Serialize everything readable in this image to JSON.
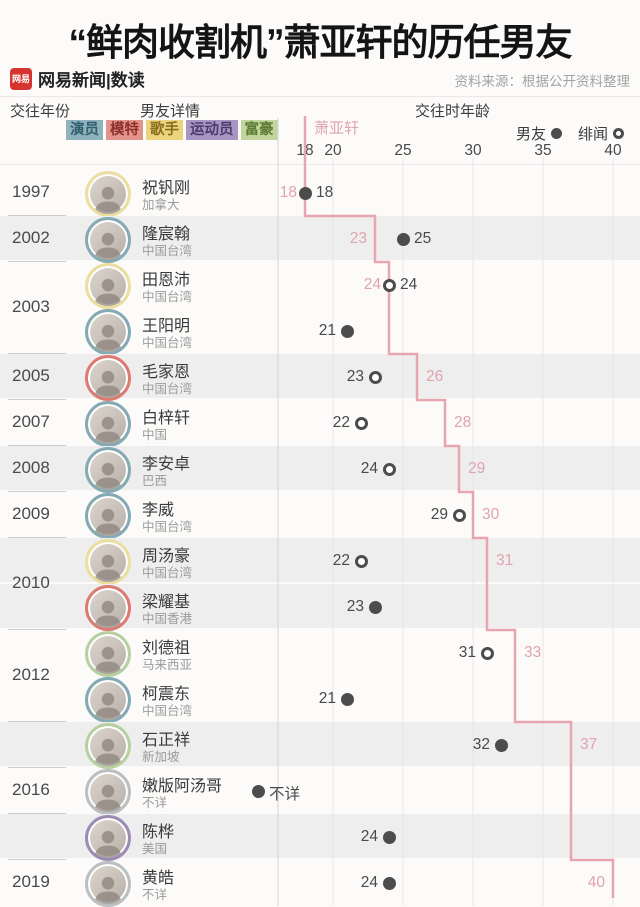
{
  "header": {
    "title": "“鲜肉收割机”萧亚轩的历任男友",
    "brand": {
      "logo_text": "网易",
      "name": "网易新闻|数读"
    },
    "source": "资料来源：根据公开资料整理"
  },
  "table": {
    "col_year": "交往年份",
    "col_detail": "男友详情",
    "col_age": "交往时年龄"
  },
  "legend": {
    "chips": [
      {
        "label": "演员",
        "bg": "#8fb3bd",
        "fg": "#2f5f6e"
      },
      {
        "label": "模特",
        "bg": "#e2938c",
        "fg": "#8e3029"
      },
      {
        "label": "歌手",
        "bg": "#ecd47e",
        "fg": "#8a6d1d"
      },
      {
        "label": "运动员",
        "bg": "#a995c2",
        "fg": "#4c3c6e"
      },
      {
        "label": "富豪",
        "bg": "#c2d59e",
        "fg": "#5d7b34"
      }
    ],
    "boyfriend_label": "男友",
    "rumor_label": "绯闻",
    "elva_label": "萧亚轩"
  },
  "category_ring_colors": {
    "演员": "#84aab4",
    "模特": "#dd7a72",
    "歌手": "#eadfa0",
    "运动员": "#9c8bb5",
    "富豪": "#b7d0a0",
    "不详": "#bcbfc1"
  },
  "colors": {
    "accent_pink": "#e79fab",
    "label_pink": "#e0a3af",
    "dot": "#4c4c4c",
    "row_shade": "#efeeef",
    "grid": "#e7e5e5",
    "divider": "#d6d4d4",
    "brand_red": "#d6352f"
  },
  "chart_data": {
    "type": "scatter",
    "title": "“鲜肉收割机”萧亚轩的历任男友",
    "xlabel": "交往时年龄",
    "x_axis": {
      "min": 18,
      "max": 40,
      "ticks": [
        18,
        20,
        25,
        30,
        35,
        40
      ]
    },
    "series": [
      {
        "name": "男友",
        "marker": "filled"
      },
      {
        "name": "绯闻",
        "marker": "hollow"
      }
    ],
    "step_line": {
      "name": "萧亚轩",
      "meaning": "萧亚轩交往时年龄"
    },
    "groups": [
      {
        "year": "1997",
        "shaded": false,
        "elva_age": 18,
        "elva_label_side": "left",
        "members": [
          {
            "name": "祝钒刚",
            "region": "加拿大",
            "category": "歌手",
            "relation": "男友",
            "age": 18,
            "label_side": "right"
          }
        ]
      },
      {
        "year": "2002",
        "shaded": true,
        "elva_age": 23,
        "elva_label_side": "left",
        "members": [
          {
            "name": "隆宸翰",
            "region": "中国台湾",
            "category": "演员",
            "relation": "男友",
            "age": 25,
            "label_side": "right"
          }
        ]
      },
      {
        "year": "2003",
        "shaded": false,
        "elva_age": 24,
        "elva_label_side": "left",
        "members": [
          {
            "name": "田恩沛",
            "region": "中国台湾",
            "category": "歌手",
            "relation": "绯闻",
            "age": 24,
            "label_side": "right"
          },
          {
            "name": "王阳明",
            "region": "中国台湾",
            "category": "演员",
            "relation": "男友",
            "age": 21,
            "label_side": "left"
          }
        ]
      },
      {
        "year": "2005",
        "shaded": true,
        "elva_age": 26,
        "elva_label_side": "right",
        "members": [
          {
            "name": "毛家恩",
            "region": "中国台湾",
            "category": "模特",
            "relation": "绯闻",
            "age": 23,
            "label_side": "left"
          }
        ]
      },
      {
        "year": "2007",
        "shaded": false,
        "elva_age": 28,
        "elva_label_side": "right",
        "members": [
          {
            "name": "白梓轩",
            "region": "中国",
            "category": "演员",
            "relation": "绯闻",
            "age": 22,
            "label_side": "left"
          }
        ]
      },
      {
        "year": "2008",
        "shaded": true,
        "elva_age": 29,
        "elva_label_side": "right",
        "members": [
          {
            "name": "李安卓",
            "region": "巴西",
            "category": "演员",
            "relation": "绯闻",
            "age": 24,
            "label_side": "left"
          }
        ]
      },
      {
        "year": "2009",
        "shaded": false,
        "elva_age": 30,
        "elva_label_side": "right",
        "members": [
          {
            "name": "李威",
            "region": "中国台湾",
            "category": "演员",
            "relation": "绯闻",
            "age": 29,
            "label_side": "left"
          }
        ]
      },
      {
        "year": "2010",
        "shaded": true,
        "elva_age": 31,
        "elva_label_side": "right",
        "members": [
          {
            "name": "周汤豪",
            "region": "中国台湾",
            "category": "歌手",
            "relation": "绯闻",
            "age": 22,
            "label_side": "left"
          },
          {
            "name": "梁耀基",
            "region": "中国香港",
            "category": "模特",
            "relation": "男友",
            "age": 23,
            "label_side": "left"
          }
        ]
      },
      {
        "year": "2012",
        "shaded": false,
        "elva_age": 33,
        "elva_label_side": "right",
        "members": [
          {
            "name": "刘德祖",
            "region": "马来西亚",
            "category": "富豪",
            "relation": "绯闻",
            "age": 31,
            "label_side": "left"
          },
          {
            "name": "柯震东",
            "region": "中国台湾",
            "category": "演员",
            "relation": "男友",
            "age": 21,
            "label_side": "left"
          }
        ]
      },
      {
        "year": "",
        "shaded": true,
        "elva_age": 37,
        "elva_label_side": "right",
        "members": [
          {
            "name": "石正祥",
            "region": "新加坡",
            "category": "富豪",
            "relation": "男友",
            "age": 32,
            "label_side": "left"
          }
        ]
      },
      {
        "year": "2016",
        "shaded": false,
        "elva_age": 37,
        "elva_label_side": null,
        "members": [
          {
            "name": "嫩版阿汤哥",
            "region": "不详",
            "category": "不详",
            "relation": "男友",
            "age": null,
            "age_text": "不详",
            "label_side": "right"
          }
        ]
      },
      {
        "year": "",
        "shaded": true,
        "elva_age": 37,
        "elva_label_side": null,
        "members": [
          {
            "name": "陈桦",
            "region": "美国",
            "category": "运动员",
            "relation": "男友",
            "age": 24,
            "label_side": "left"
          }
        ]
      },
      {
        "year": "2019",
        "shaded": false,
        "elva_age": 40,
        "elva_label_side": "left",
        "members": [
          {
            "name": "黄皓",
            "region": "不详",
            "category": "不详",
            "relation": "男友",
            "age": 24,
            "label_side": "left"
          }
        ]
      }
    ]
  }
}
